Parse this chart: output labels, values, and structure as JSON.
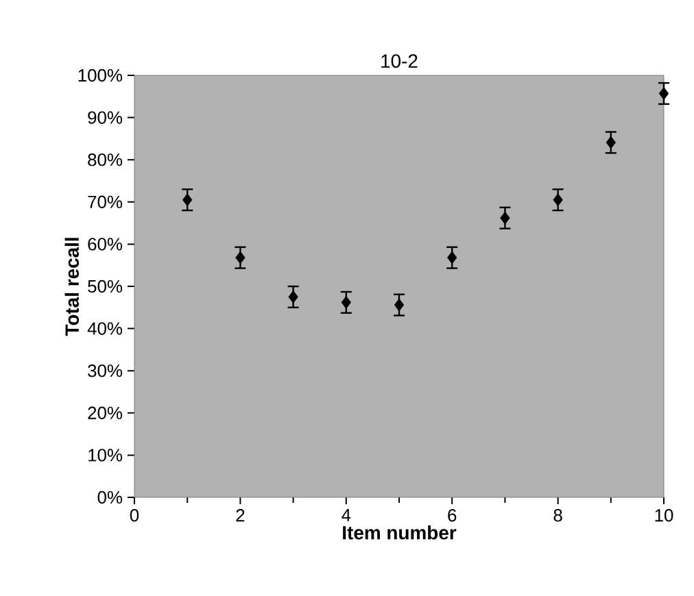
{
  "chart_data": {
    "type": "scatter",
    "title": "10-2",
    "xlabel": "Item number",
    "ylabel": "Total recall",
    "x": [
      1,
      2,
      3,
      4,
      5,
      6,
      7,
      8,
      9,
      10
    ],
    "values": [
      70.5,
      56.8,
      47.5,
      46.2,
      45.6,
      56.8,
      66.2,
      70.5,
      84.1,
      95.7
    ],
    "errors": [
      2.5,
      2.5,
      2.5,
      2.5,
      2.5,
      2.5,
      2.5,
      2.5,
      2.5,
      2.5
    ],
    "color": "#000000",
    "marker": "diamond",
    "xlim": [
      0,
      10
    ],
    "xticks": [
      0,
      2,
      4,
      6,
      8,
      10
    ],
    "ylim": [
      0,
      100
    ],
    "yticks": [
      {
        "value": 0,
        "label": "0%"
      },
      {
        "value": 10,
        "label": "10%"
      },
      {
        "value": 20,
        "label": "20%"
      },
      {
        "value": 30,
        "label": "30%"
      },
      {
        "value": 40,
        "label": "40%"
      },
      {
        "value": 50,
        "label": "50%"
      },
      {
        "value": 60,
        "label": "60%"
      },
      {
        "value": 70,
        "label": "70%"
      },
      {
        "value": 80,
        "label": "80%"
      },
      {
        "value": 90,
        "label": "90%"
      },
      {
        "value": 100,
        "label": "100%"
      }
    ],
    "grid": false
  }
}
